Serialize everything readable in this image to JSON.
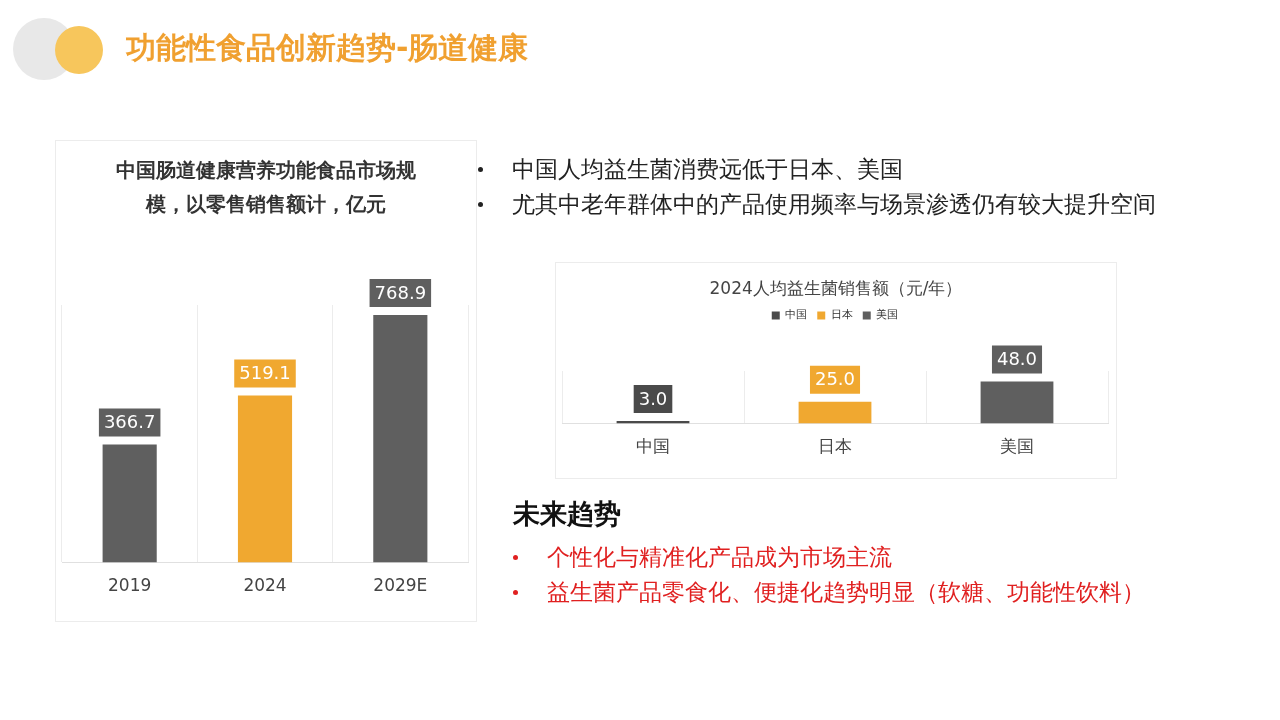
{
  "chart_data": [
    {
      "type": "other",
      "title": "功能性食品创新趋势-肠道健康",
      "annotations": [
        "中国人均益生菌消费远低于日本、美国",
        "尤其中老年群体中的产品使用频率与场景渗透仍有较大提升空间",
        "未来趋势",
        "个性化与精准化产品成为市场主流",
        "益生菌产品零食化、便捷化趋势明显（软糖、功能性饮料）"
      ]
    },
    {
      "type": "bar",
      "title": "中国肠道健康营养功能食品市场规模，以零售销售额计，亿元",
      "categories": [
        "2019",
        "2024",
        "2029E"
      ],
      "values": [
        366.7,
        519.1,
        768.9
      ],
      "colors": [
        "#5f5f5f",
        "#f0a830",
        "#5f5f5f"
      ],
      "data_labels": true,
      "grid": "x",
      "tick_labels": "x"
    },
    {
      "type": "bar",
      "title": "2024人均益生菌销售额（元/年）",
      "categories": [
        "中国",
        "日本",
        "美国"
      ],
      "series": [
        {
          "name": "中国",
          "color": "#4a4a4a",
          "values": [
            3.0,
            null,
            null
          ],
          "value_labels": [
            "3.0",
            null,
            null
          ]
        },
        {
          "name": "日本",
          "color": "#f0a830",
          "values": [
            null,
            25.0,
            null
          ],
          "value_labels": [
            null,
            "25.0",
            null
          ]
        },
        {
          "name": "美国",
          "color": "#5f5f5f",
          "values": [
            null,
            null,
            48.0
          ],
          "value_labels": [
            null,
            null,
            "48.0"
          ]
        }
      ],
      "legend": "top",
      "grid": "x",
      "tick_labels": "x"
    }
  ]
}
